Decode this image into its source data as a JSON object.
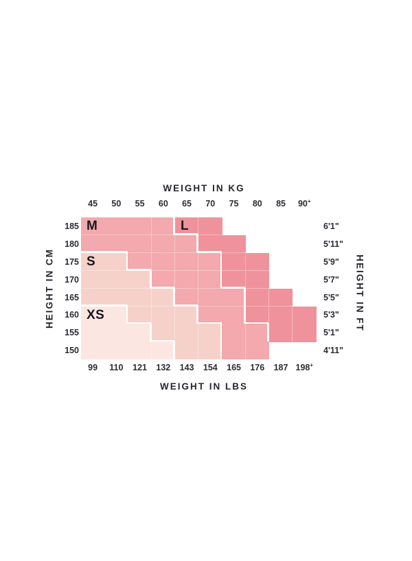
{
  "chart_data": {
    "type": "heatmap",
    "title_top": "WEIGHT IN KG",
    "title_bottom": "WEIGHT IN LBS",
    "title_left": "HEIGHT IN CM",
    "title_right": "HEIGHT IN FT",
    "kg_ticks": [
      "45",
      "50",
      "55",
      "60",
      "65",
      "70",
      "75",
      "80",
      "85",
      "90+"
    ],
    "lbs_ticks": [
      "99",
      "110",
      "121",
      "132",
      "143",
      "154",
      "165",
      "176",
      "187",
      "198+"
    ],
    "cm_ticks": [
      "185",
      "180",
      "175",
      "170",
      "165",
      "160",
      "155",
      "150"
    ],
    "ft_ticks": [
      "6'1\"",
      "5'11\"",
      "5'9\"",
      "5'7\"",
      "5'5\"",
      "5'3\"",
      "5'1\"",
      "4'11\""
    ],
    "sizes": [
      {
        "code": "X",
        "name": "XS",
        "color": "#fbe6e2"
      },
      {
        "code": "S",
        "name": "S",
        "color": "#f6d1ca"
      },
      {
        "code": "M",
        "name": "M",
        "color": "#f3a9ad"
      },
      {
        "code": "L",
        "name": "L",
        "color": "#f0929b"
      }
    ],
    "grid": [
      "MMMMLL....",
      "MMMMMLL...",
      "SSMMMMLL..",
      "SSSMMMLL..",
      "SSSSMMMLL.",
      "XXSSSMMLLL",
      "XXXSSSMMLL",
      "XXXXSSMM.."
    ],
    "size_labels": [
      {
        "text": "M",
        "row": 0,
        "col": 0
      },
      {
        "text": "L",
        "row": 0,
        "col": 4
      },
      {
        "text": "S",
        "row": 2,
        "col": 0
      },
      {
        "text": "XS",
        "row": 5,
        "col": 0
      }
    ],
    "colors": {
      "boundary": "#ffffff",
      "inner_grid_line": "rgba(255,255,255,0.35)",
      "text": "#26262e"
    }
  }
}
